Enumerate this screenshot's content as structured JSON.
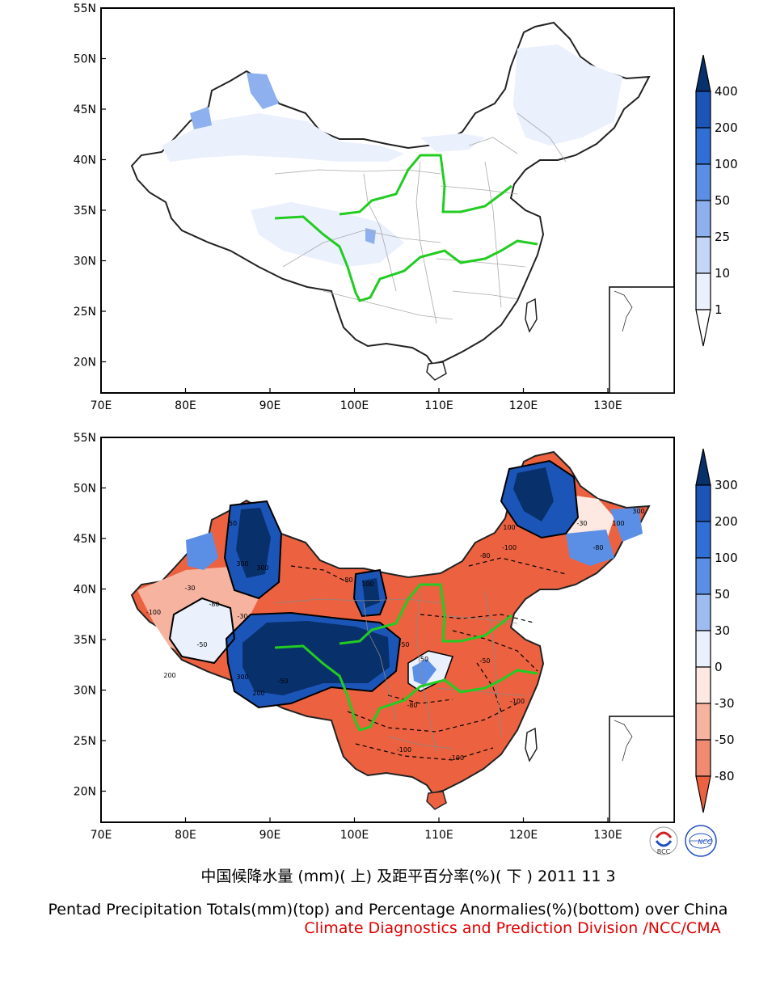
{
  "top_map": {
    "lat_labels": [
      "55N",
      "50N",
      "45N",
      "40N",
      "35N",
      "30N",
      "25N",
      "20N"
    ],
    "lon_labels": [
      "70E",
      "80E",
      "90E",
      "100E",
      "110E",
      "120E",
      "130E"
    ],
    "colorbar": {
      "levels": [
        "400",
        "200",
        "100",
        "50",
        "25",
        "10",
        "1"
      ],
      "colors": [
        "#08306b",
        "#1c55b8",
        "#2f6fd6",
        "#5b8fe6",
        "#8eb0ee",
        "#c4d5f6",
        "#eaf0fc",
        "#ffffff"
      ]
    }
  },
  "bottom_map": {
    "lat_labels": [
      "55N",
      "50N",
      "45N",
      "40N",
      "35N",
      "30N",
      "25N",
      "20N"
    ],
    "lon_labels": [
      "70E",
      "80E",
      "90E",
      "100E",
      "110E",
      "120E",
      "130E"
    ],
    "colorbar": {
      "levels": [
        "300",
        "200",
        "100",
        "50",
        "30",
        "0",
        "-30",
        "-50",
        "-80"
      ],
      "colors": [
        "#08306b",
        "#1c55b8",
        "#2f6fd6",
        "#5b8fe6",
        "#9fbcf0",
        "#eaf0fc",
        "#fde8e2",
        "#f6b3a0",
        "#f08a70",
        "#ec6240"
      ]
    },
    "contour_labels": [
      "300",
      "200",
      "100",
      "50",
      "-30",
      "-50",
      "-80",
      "-100"
    ]
  },
  "logos": {
    "left": "BCC",
    "right": "NCC"
  },
  "caption": {
    "line1": "中国候降水量 (mm)( 上) 及距平百分率(%)( 下 ) 2011 11 3",
    "line2": "Pentad Precipitation Totals(mm)(top) and Percentage Anormalies(%)(bottom) over China",
    "line3": "Climate Diagnostics and Prediction Division /NCC/CMA"
  },
  "colors": {
    "river": "#22cc22",
    "anomaly_negative": "#ec6240",
    "anomaly_positive": "#08306b",
    "credit_text": "#e00000"
  }
}
